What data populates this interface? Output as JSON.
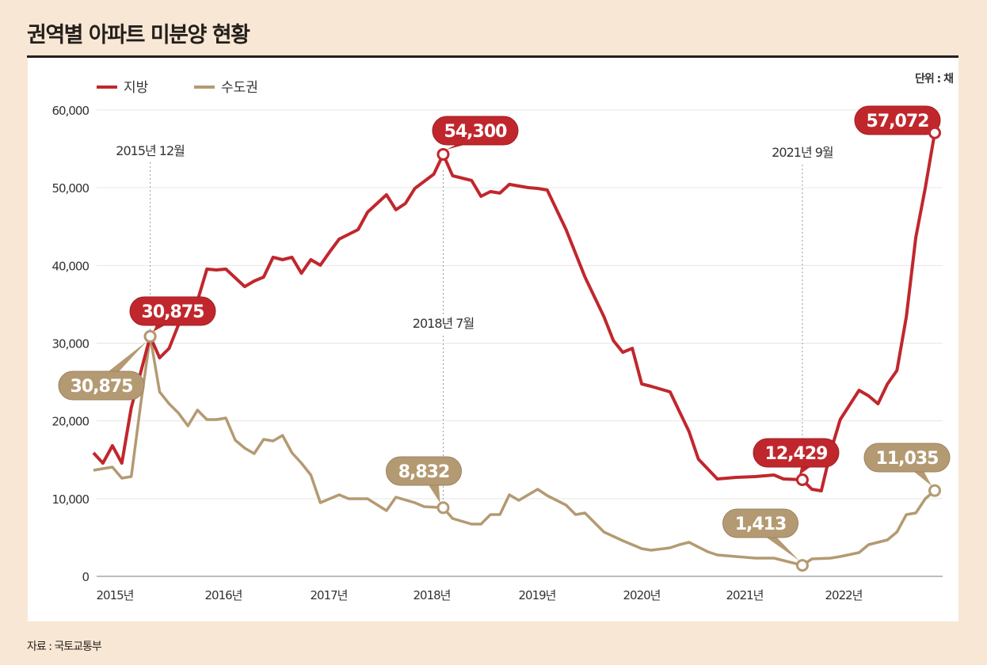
{
  "title": "권역별 아파트 미분양 현황",
  "unit": "단위 : 채",
  "source": "자료 : 국토교통부",
  "colors": {
    "jibang": "#c0272d",
    "sudogwon": "#b49a72",
    "background": "#f8e7d4"
  },
  "chart_data": {
    "type": "line",
    "title": "권역별 아파트 미분양 현황",
    "ylabel": "",
    "xlabel": "",
    "ylim": [
      0,
      60000
    ],
    "yticks": [
      "0",
      "10,000",
      "20,000",
      "30,000",
      "40,000",
      "50,000",
      "60,000"
    ],
    "ytick_values": [
      0,
      10000,
      20000,
      30000,
      40000,
      50000,
      60000
    ],
    "xticks": [
      "2015년",
      "2016년",
      "2017년",
      "2018년",
      "2019년",
      "2020년",
      "2021년",
      "2022년"
    ],
    "grid": true,
    "legend": "top-left",
    "annotations": [
      {
        "text": "2015년 12월",
        "x": "2015-12"
      },
      {
        "text": "2018년 7월",
        "x": "2018-07"
      },
      {
        "text": "2021년 9월",
        "x": "2021-09"
      }
    ],
    "series": [
      {
        "name": "지방",
        "color": "#c0272d",
        "labels": [
          {
            "x": "2015-12",
            "text": "30,875"
          },
          {
            "x": "2018-07",
            "text": "54,300"
          },
          {
            "x": "2021-09",
            "text": "12,429"
          },
          {
            "x": "2022-11",
            "text": "57,072"
          }
        ],
        "points": [
          [
            "2015-06",
            15890
          ],
          [
            "2015-07",
            14570
          ],
          [
            "2015-08",
            16810
          ],
          [
            "2015-09",
            14570
          ],
          [
            "2015-10",
            21700
          ],
          [
            "2015-11",
            26280
          ],
          [
            "2015-12",
            30875
          ],
          [
            "2016-01",
            28120
          ],
          [
            "2016-02",
            29340
          ],
          [
            "2016-03",
            32390
          ],
          [
            "2016-05",
            35450
          ],
          [
            "2016-06",
            39530
          ],
          [
            "2016-07",
            39420
          ],
          [
            "2016-08",
            39530
          ],
          [
            "2016-10",
            37280
          ],
          [
            "2016-11",
            38000
          ],
          [
            "2016-12",
            38510
          ],
          [
            "2017-01",
            41050
          ],
          [
            "2017-02",
            40750
          ],
          [
            "2017-03",
            41050
          ],
          [
            "2017-04",
            39010
          ],
          [
            "2017-05",
            40750
          ],
          [
            "2017-06",
            40030
          ],
          [
            "2017-07",
            41770
          ],
          [
            "2017-08",
            43400
          ],
          [
            "2017-10",
            44620
          ],
          [
            "2017-11",
            46860
          ],
          [
            "2018-01",
            49100
          ],
          [
            "2018-02",
            47170
          ],
          [
            "2018-03",
            47980
          ],
          [
            "2018-04",
            49920
          ],
          [
            "2018-06",
            51750
          ],
          [
            "2018-07",
            54300
          ],
          [
            "2018-08",
            51550
          ],
          [
            "2018-10",
            50940
          ],
          [
            "2018-11",
            48900
          ],
          [
            "2018-12",
            49510
          ],
          [
            "2019-01",
            49310
          ],
          [
            "2019-02",
            50430
          ],
          [
            "2019-04",
            50020
          ],
          [
            "2019-05",
            49920
          ],
          [
            "2019-06",
            49710
          ],
          [
            "2019-08",
            44620
          ],
          [
            "2019-10",
            38510
          ],
          [
            "2019-12",
            33410
          ],
          [
            "2020-01",
            30350
          ],
          [
            "2020-02",
            28830
          ],
          [
            "2020-03",
            29340
          ],
          [
            "2020-04",
            24750
          ],
          [
            "2020-05",
            24450
          ],
          [
            "2020-07",
            23740
          ],
          [
            "2020-08",
            21190
          ],
          [
            "2020-09",
            18640
          ],
          [
            "2020-10",
            15080
          ],
          [
            "2020-12",
            12530
          ],
          [
            "2021-02",
            12730
          ],
          [
            "2021-04",
            12840
          ],
          [
            "2021-06",
            13040
          ],
          [
            "2021-07",
            12530
          ],
          [
            "2021-09",
            12429
          ],
          [
            "2021-10",
            11210
          ],
          [
            "2021-11",
            11000
          ],
          [
            "2021-12",
            16100
          ],
          [
            "2022-01",
            20170
          ],
          [
            "2022-03",
            23940
          ],
          [
            "2022-04",
            23230
          ],
          [
            "2022-05",
            22210
          ],
          [
            "2022-06",
            24750
          ],
          [
            "2022-07",
            26490
          ],
          [
            "2022-08",
            33410
          ],
          [
            "2022-09",
            43600
          ],
          [
            "2022-10",
            50000
          ],
          [
            "2022-11",
            57072
          ]
        ]
      },
      {
        "name": "수도권",
        "color": "#b49a72",
        "labels": [
          {
            "x": "2015-12",
            "text": "30,875"
          },
          {
            "x": "2018-07",
            "text": "8,832"
          },
          {
            "x": "2021-09",
            "text": "1,413"
          },
          {
            "x": "2022-11",
            "text": "11,035"
          }
        ],
        "points": [
          [
            "2015-06",
            13650
          ],
          [
            "2015-07",
            13850
          ],
          [
            "2015-08",
            14060
          ],
          [
            "2015-09",
            12630
          ],
          [
            "2015-10",
            12840
          ],
          [
            "2015-11",
            22210
          ],
          [
            "2015-12",
            30875
          ],
          [
            "2016-01",
            23740
          ],
          [
            "2016-02",
            22210
          ],
          [
            "2016-03",
            20990
          ],
          [
            "2016-04",
            19360
          ],
          [
            "2016-05",
            21390
          ],
          [
            "2016-06",
            20170
          ],
          [
            "2016-07",
            20170
          ],
          [
            "2016-08",
            20370
          ],
          [
            "2016-09",
            17520
          ],
          [
            "2016-10",
            16500
          ],
          [
            "2016-11",
            15790
          ],
          [
            "2016-12",
            17620
          ],
          [
            "2017-01",
            17420
          ],
          [
            "2017-02",
            18130
          ],
          [
            "2017-03",
            15890
          ],
          [
            "2017-04",
            14570
          ],
          [
            "2017-05",
            13040
          ],
          [
            "2017-06",
            9470
          ],
          [
            "2017-08",
            10490
          ],
          [
            "2017-09",
            9980
          ],
          [
            "2017-10",
            9980
          ],
          [
            "2017-11",
            9980
          ],
          [
            "2018-01",
            8460
          ],
          [
            "2018-02",
            10190
          ],
          [
            "2018-04",
            9470
          ],
          [
            "2018-05",
            8960
          ],
          [
            "2018-07",
            8832
          ],
          [
            "2018-08",
            7440
          ],
          [
            "2018-10",
            6720
          ],
          [
            "2018-11",
            6720
          ],
          [
            "2018-12",
            7950
          ],
          [
            "2019-01",
            7950
          ],
          [
            "2019-02",
            10490
          ],
          [
            "2019-03",
            9780
          ],
          [
            "2019-05",
            11210
          ],
          [
            "2019-06",
            10390
          ],
          [
            "2019-07",
            9780
          ],
          [
            "2019-08",
            9170
          ],
          [
            "2019-09",
            7950
          ],
          [
            "2019-10",
            8150
          ],
          [
            "2019-12",
            5700
          ],
          [
            "2020-02",
            4580
          ],
          [
            "2020-04",
            3570
          ],
          [
            "2020-05",
            3360
          ],
          [
            "2020-07",
            3670
          ],
          [
            "2020-08",
            4070
          ],
          [
            "2020-09",
            4380
          ],
          [
            "2020-11",
            3160
          ],
          [
            "2020-12",
            2750
          ],
          [
            "2021-02",
            2550
          ],
          [
            "2021-04",
            2340
          ],
          [
            "2021-06",
            2340
          ],
          [
            "2021-09",
            1413
          ],
          [
            "2021-10",
            2240
          ],
          [
            "2021-12",
            2340
          ],
          [
            "2022-01",
            2550
          ],
          [
            "2022-03",
            3060
          ],
          [
            "2022-04",
            4070
          ],
          [
            "2022-06",
            4690
          ],
          [
            "2022-07",
            5700
          ],
          [
            "2022-08",
            7950
          ],
          [
            "2022-09",
            8150
          ],
          [
            "2022-10",
            9980
          ],
          [
            "2022-11",
            11035
          ]
        ]
      }
    ]
  }
}
